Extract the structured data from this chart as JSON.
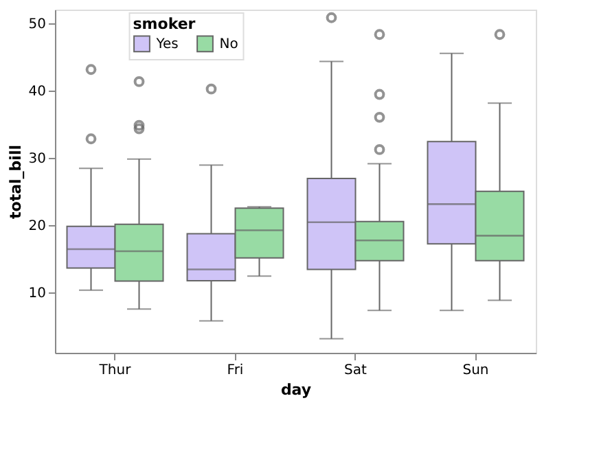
{
  "chart_data": {
    "type": "box",
    "xlabel": "day",
    "ylabel": "total_bill",
    "legend_title": "smoker",
    "legend": "top left",
    "categories": [
      "Thur",
      "Fri",
      "Sat",
      "Sun"
    ],
    "ylim": [
      1,
      52
    ],
    "yticks": [
      10,
      20,
      30,
      40,
      50
    ],
    "series": [
      {
        "name": "Yes",
        "color": "#cfc4f7",
        "boxes": [
          {
            "low": 10.3,
            "q1": 13.6,
            "median": 16.4,
            "q3": 19.8,
            "high": 28.4,
            "outliers": [
              32.8,
              43.1
            ]
          },
          {
            "low": 5.75,
            "q1": 11.7,
            "median": 13.4,
            "q3": 18.7,
            "high": 28.9,
            "outliers": [
              40.2
            ]
          },
          {
            "low": 3.1,
            "q1": 13.4,
            "median": 20.4,
            "q3": 26.9,
            "high": 44.3,
            "outliers": [
              50.8
            ]
          },
          {
            "low": 7.3,
            "q1": 17.2,
            "median": 23.1,
            "q3": 32.4,
            "high": 45.5
          }
        ]
      },
      {
        "name": "No",
        "color": "#98dba4",
        "boxes": [
          {
            "low": 7.5,
            "q1": 11.65,
            "median": 16.1,
            "q3": 20.1,
            "high": 29.8,
            "outliers": [
              34.3,
              34.8,
              41.3
            ]
          },
          {
            "low": 12.4,
            "q1": 15.1,
            "median": 19.2,
            "q3": 22.5,
            "high": 22.7
          },
          {
            "low": 7.3,
            "q1": 14.7,
            "median": 17.7,
            "q3": 20.5,
            "high": 29.1,
            "outliers": [
              31.2,
              36.0,
              39.4,
              48.3
            ]
          },
          {
            "low": 8.8,
            "q1": 14.7,
            "median": 18.4,
            "q3": 25.0,
            "high": 38.1,
            "outliers": [
              48.3
            ]
          }
        ]
      }
    ]
  }
}
